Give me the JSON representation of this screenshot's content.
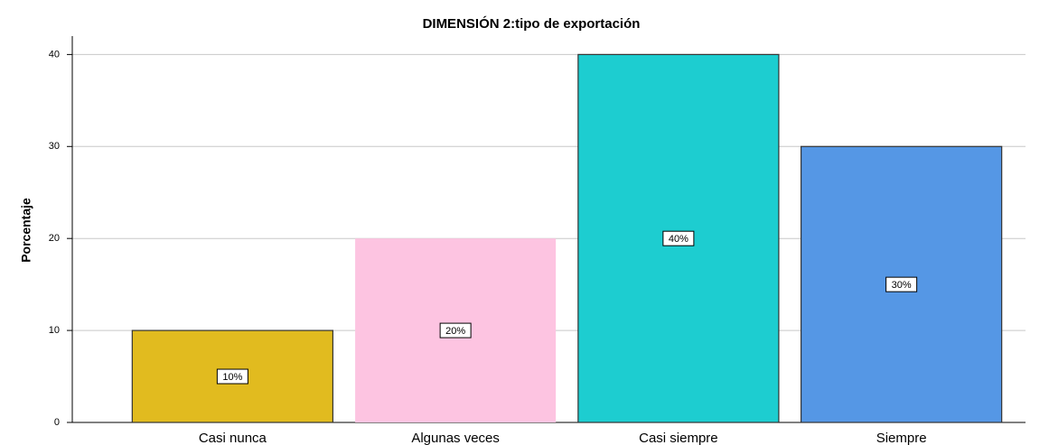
{
  "chart_data": {
    "type": "bar",
    "title": "DIMENSIÓN 2:tipo de exportación",
    "y_label": "Porcentaje",
    "categories": [
      "Casi nunca",
      "Algunas veces",
      "Casi siempre",
      "Siempre"
    ],
    "values": [
      10,
      20,
      40,
      30
    ],
    "value_labels": [
      "10%",
      "20%",
      "40%",
      "30%"
    ],
    "colors": [
      "#e1bb1f",
      "#fdc4e1",
      "#1dcdd0",
      "#5597e5"
    ],
    "ylim": [
      0,
      42
    ],
    "yticks": [
      0,
      10,
      20,
      30,
      40
    ],
    "grid": true
  }
}
